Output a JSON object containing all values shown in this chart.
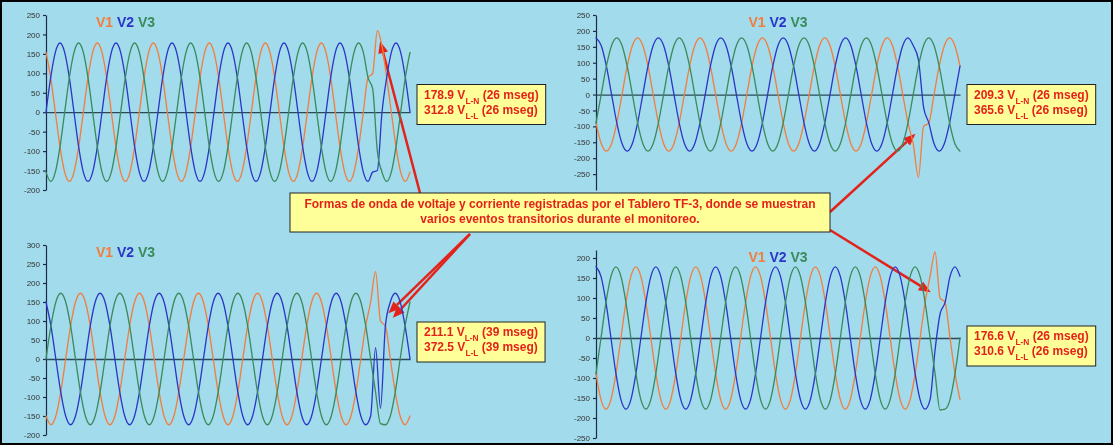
{
  "chart_data": [
    {
      "type": "line",
      "tick_labels": "y",
      "legend": "top left",
      "categories": [
        null,
        null,
        null,
        null,
        null,
        null,
        null,
        null,
        null,
        null,
        null,
        null,
        null,
        null,
        null,
        null,
        null,
        null,
        null,
        null,
        null,
        null,
        null,
        null,
        null,
        null,
        null,
        null,
        null,
        null,
        null,
        null,
        null,
        null,
        null,
        null,
        null,
        null,
        null,
        null,
        null,
        null,
        null,
        null,
        null,
        null,
        null,
        null,
        null,
        null,
        null,
        null,
        null,
        null,
        null,
        null,
        null,
        null,
        null,
        null,
        null,
        null,
        null,
        null,
        null,
        null,
        null,
        null,
        null,
        null,
        null,
        null,
        null,
        null,
        null,
        null,
        null,
        null,
        null
      ],
      "ylim": [
        -200,
        250
      ],
      "yticks": [
        -200,
        -150,
        -100,
        -50,
        0,
        50,
        100,
        150,
        200,
        250
      ],
      "series": [
        {
          "name": "V1",
          "color": "#f47c3c",
          "values": [
            154,
            89,
            0,
            -89,
            -154,
            -178,
            -154,
            -89,
            0,
            89,
            154,
            178,
            154,
            89,
            0,
            -89,
            -154,
            -178,
            -154,
            -89,
            0,
            89,
            154,
            178,
            154,
            89,
            0,
            -89,
            -154,
            -178,
            -154,
            -89,
            0,
            89,
            154,
            178,
            154,
            89,
            0,
            -89,
            -154,
            -178,
            -154,
            -89,
            0,
            89,
            154,
            178,
            154,
            89,
            0,
            -89,
            -154,
            -178,
            -154,
            -89,
            0,
            89,
            154,
            178,
            154,
            89,
            0,
            -89,
            -154,
            -178,
            -154,
            -89,
            0,
            89,
            100,
            210,
            170,
            89,
            0,
            -89,
            -154,
            -178,
            -154
          ]
        },
        {
          "name": "V2",
          "color": "#2b35c8",
          "values": [
            0,
            89,
            154,
            178,
            154,
            89,
            0,
            -89,
            -154,
            -178,
            -154,
            -89,
            0,
            89,
            154,
            178,
            154,
            89,
            0,
            -89,
            -154,
            -178,
            -154,
            -89,
            0,
            89,
            154,
            178,
            154,
            89,
            0,
            -89,
            -154,
            -178,
            -154,
            -89,
            0,
            89,
            154,
            178,
            154,
            89,
            0,
            -89,
            -154,
            -178,
            -154,
            -89,
            0,
            89,
            154,
            178,
            154,
            89,
            0,
            -89,
            -154,
            -178,
            -154,
            -89,
            0,
            89,
            154,
            178,
            154,
            89,
            0,
            -89,
            -154,
            -178,
            -154,
            -150,
            0,
            89,
            154,
            178,
            154,
            89,
            0
          ]
        },
        {
          "name": "V3",
          "color": "#3a8a5c",
          "values": [
            -154,
            -178,
            -154,
            -89,
            0,
            89,
            154,
            178,
            154,
            89,
            0,
            -89,
            -154,
            -178,
            -154,
            -89,
            0,
            89,
            154,
            178,
            154,
            89,
            0,
            -89,
            -154,
            -178,
            -154,
            -89,
            0,
            89,
            154,
            178,
            154,
            89,
            0,
            -89,
            -154,
            -178,
            -154,
            -89,
            0,
            89,
            154,
            178,
            154,
            89,
            0,
            -89,
            -154,
            -178,
            -154,
            -89,
            0,
            89,
            154,
            178,
            154,
            89,
            0,
            -89,
            -154,
            -178,
            -154,
            -89,
            0,
            89,
            154,
            178,
            154,
            89,
            60,
            -100,
            -154,
            -178,
            -154,
            -89,
            0,
            89,
            154
          ]
        }
      ],
      "annotations": [
        "178.9 V$_{L-N}$ (26 mseg)",
        "312.8 V$_{L-L}$ (26 mseg)",
        "Formas de onda de voltaje y corriente registradas por el Tablero TF-3, donde se muestran varios eventos transitorios durante el monitoreo."
      ]
    },
    {
      "type": "line",
      "tick_labels": "y",
      "legend": "top",
      "categories": [
        null,
        null,
        null,
        null,
        null,
        null,
        null,
        null,
        null,
        null,
        null,
        null,
        null,
        null,
        null,
        null,
        null,
        null,
        null,
        null,
        null,
        null,
        null,
        null,
        null,
        null,
        null,
        null,
        null,
        null,
        null,
        null,
        null,
        null,
        null,
        null,
        null,
        null,
        null,
        null,
        null,
        null,
        null,
        null,
        null,
        null,
        null,
        null,
        null,
        null,
        null,
        null,
        null,
        null,
        null,
        null,
        null,
        null,
        null,
        null,
        null,
        null,
        null,
        null,
        null,
        null,
        null,
        null,
        null,
        null,
        null
      ],
      "ylim": [
        -300,
        250
      ],
      "yticks": [
        -250,
        -200,
        -150,
        -100,
        -50,
        0,
        50,
        100,
        150,
        200,
        250
      ],
      "series": [
        {
          "name": "V1",
          "color": "#f47c3c",
          "values": [
            -89,
            -154,
            -178,
            -154,
            -89,
            0,
            89,
            154,
            178,
            154,
            89,
            0,
            -89,
            -154,
            -178,
            -154,
            -89,
            0,
            89,
            154,
            178,
            154,
            89,
            0,
            -89,
            -154,
            -178,
            -154,
            -89,
            0,
            89,
            154,
            178,
            154,
            89,
            0,
            -89,
            -154,
            -178,
            -154,
            -89,
            0,
            89,
            154,
            178,
            154,
            89,
            0,
            -89,
            -154,
            -178,
            -154,
            -89,
            0,
            89,
            154,
            178,
            154,
            89,
            0,
            -89,
            -154,
            -260,
            -100,
            -89,
            0,
            89,
            154,
            178,
            154,
            89
          ]
        },
        {
          "name": "V2",
          "color": "#2b35c8",
          "values": [
            178,
            154,
            89,
            0,
            -89,
            -154,
            -178,
            -154,
            -89,
            0,
            89,
            154,
            178,
            154,
            89,
            0,
            -89,
            -154,
            -178,
            -154,
            -89,
            0,
            89,
            154,
            178,
            154,
            89,
            0,
            -89,
            -154,
            -178,
            -154,
            -89,
            0,
            89,
            154,
            178,
            154,
            89,
            0,
            -89,
            -154,
            -178,
            -154,
            -89,
            0,
            89,
            154,
            178,
            154,
            89,
            0,
            -89,
            -154,
            -178,
            -154,
            -89,
            0,
            89,
            154,
            178,
            154,
            110,
            -40,
            -89,
            -154,
            -178,
            -154,
            -89,
            0,
            89
          ]
        },
        {
          "name": "V3",
          "color": "#3a8a5c",
          "values": [
            -89,
            0,
            89,
            154,
            178,
            154,
            89,
            0,
            -89,
            -154,
            -178,
            -154,
            -89,
            0,
            89,
            154,
            178,
            154,
            89,
            0,
            -89,
            -154,
            -178,
            -154,
            -89,
            0,
            89,
            154,
            178,
            154,
            89,
            0,
            -89,
            -154,
            -178,
            -154,
            -89,
            0,
            89,
            154,
            178,
            154,
            89,
            0,
            -89,
            -154,
            -178,
            -154,
            -89,
            0,
            89,
            154,
            178,
            154,
            89,
            0,
            -89,
            -154,
            -178,
            -154,
            -89,
            0,
            89,
            154,
            178,
            154,
            89,
            0,
            -89,
            -154,
            -178
          ]
        }
      ],
      "annotations": [
        "209.3 V$_{L-N}$ (26 mseg)",
        "365.6 V$_{L-L}$ (26 mseg)"
      ]
    },
    {
      "type": "line",
      "tick_labels": "y",
      "legend": "top left",
      "categories": [
        null,
        null,
        null,
        null,
        null,
        null,
        null,
        null,
        null,
        null,
        null,
        null,
        null,
        null,
        null,
        null,
        null,
        null,
        null,
        null,
        null,
        null,
        null,
        null,
        null,
        null,
        null,
        null,
        null,
        null,
        null,
        null,
        null,
        null,
        null,
        null,
        null,
        null,
        null,
        null,
        null,
        null,
        null,
        null,
        null,
        null,
        null,
        null,
        null,
        null,
        null,
        null,
        null,
        null,
        null,
        null,
        null,
        null,
        null,
        null,
        null,
        null,
        null,
        null,
        null,
        null,
        null,
        null,
        null,
        null,
        null,
        null,
        null,
        null,
        null
      ],
      "ylim": [
        -200,
        300
      ],
      "yticks": [
        -200,
        -150,
        -100,
        -50,
        0,
        50,
        100,
        150,
        200,
        250,
        300
      ],
      "series": [
        {
          "name": "V1",
          "color": "#f47c3c",
          "values": [
            -150,
            -173,
            -150,
            -87,
            0,
            87,
            150,
            173,
            150,
            87,
            0,
            -87,
            -150,
            -173,
            -150,
            -87,
            0,
            87,
            150,
            173,
            150,
            87,
            0,
            -87,
            -150,
            -173,
            -150,
            -87,
            0,
            87,
            150,
            173,
            150,
            87,
            0,
            -87,
            -150,
            -173,
            -150,
            -87,
            0,
            87,
            150,
            173,
            150,
            87,
            0,
            -87,
            -150,
            -173,
            -150,
            -87,
            0,
            87,
            150,
            173,
            150,
            87,
            0,
            -87,
            -150,
            -173,
            -150,
            -87,
            0,
            87,
            150,
            230,
            100,
            87,
            0,
            -87,
            -150,
            -173,
            -150
          ]
        },
        {
          "name": "V2",
          "color": "#2b35c8",
          "values": [
            150,
            87,
            0,
            -87,
            -150,
            -173,
            -150,
            -87,
            0,
            87,
            150,
            173,
            150,
            87,
            0,
            -87,
            -150,
            -173,
            -150,
            -87,
            0,
            87,
            150,
            173,
            150,
            87,
            0,
            -87,
            -150,
            -173,
            -150,
            -87,
            0,
            87,
            150,
            173,
            150,
            87,
            0,
            -87,
            -150,
            -173,
            -150,
            -87,
            0,
            87,
            150,
            173,
            150,
            87,
            0,
            -87,
            -150,
            -173,
            -150,
            -87,
            0,
            87,
            150,
            173,
            150,
            87,
            0,
            -87,
            -150,
            -173,
            -150,
            30,
            -130,
            87,
            150,
            173,
            150,
            87,
            0
          ]
        },
        {
          "name": "V3",
          "color": "#3a8a5c",
          "values": [
            0,
            87,
            150,
            173,
            150,
            87,
            0,
            -87,
            -150,
            -173,
            -150,
            -87,
            0,
            87,
            150,
            173,
            150,
            87,
            0,
            -87,
            -150,
            -173,
            -150,
            -87,
            0,
            87,
            150,
            173,
            150,
            87,
            0,
            -87,
            -150,
            -173,
            -150,
            -87,
            0,
            87,
            150,
            173,
            150,
            87,
            0,
            -87,
            -150,
            -173,
            -150,
            -87,
            0,
            87,
            150,
            173,
            150,
            87,
            0,
            -87,
            -150,
            -173,
            -150,
            -87,
            0,
            87,
            150,
            173,
            150,
            87,
            0,
            -87,
            -170,
            -173,
            -150,
            -87,
            0,
            87,
            150
          ]
        }
      ],
      "annotations": [
        "211.1 V$_{L-N}$ (39 mseg)",
        "372.5 V$_{L-L}$ (39 mseg)"
      ]
    },
    {
      "type": "line",
      "tick_labels": "y",
      "legend": "top",
      "categories": [
        null,
        null,
        null,
        null,
        null,
        null,
        null,
        null,
        null,
        null,
        null,
        null,
        null,
        null,
        null,
        null,
        null,
        null,
        null,
        null,
        null,
        null,
        null,
        null,
        null,
        null,
        null,
        null,
        null,
        null,
        null,
        null,
        null,
        null,
        null,
        null,
        null,
        null,
        null,
        null,
        null,
        null,
        null,
        null,
        null,
        null,
        null,
        null,
        null,
        null,
        null,
        null,
        null,
        null,
        null,
        null,
        null,
        null,
        null,
        null,
        null,
        null,
        null,
        null,
        null,
        null,
        null,
        null,
        null,
        null,
        null,
        null,
        null,
        null
      ],
      "ylim": [
        -250,
        220
      ],
      "yticks": [
        -250,
        -200,
        -150,
        -100,
        -50,
        0,
        50,
        100,
        150,
        200
      ],
      "series": [
        {
          "name": "V1",
          "color": "#f47c3c",
          "values": [
            -89,
            -154,
            -178,
            -154,
            -89,
            0,
            89,
            154,
            178,
            154,
            89,
            0,
            -89,
            -154,
            -178,
            -154,
            -89,
            0,
            89,
            154,
            178,
            154,
            89,
            0,
            -89,
            -154,
            -178,
            -154,
            -89,
            0,
            89,
            154,
            178,
            154,
            89,
            0,
            -89,
            -154,
            -178,
            -154,
            -89,
            0,
            89,
            154,
            178,
            154,
            89,
            0,
            -89,
            -154,
            -178,
            -154,
            -89,
            0,
            89,
            154,
            178,
            154,
            89,
            0,
            -89,
            -154,
            -178,
            -154,
            -89,
            0,
            89,
            154,
            215,
            100,
            89,
            0,
            -89,
            -154
          ]
        },
        {
          "name": "V2",
          "color": "#2b35c8",
          "values": [
            178,
            154,
            89,
            0,
            -89,
            -154,
            -178,
            -154,
            -89,
            0,
            89,
            154,
            178,
            154,
            89,
            0,
            -89,
            -154,
            -178,
            -154,
            -89,
            0,
            89,
            154,
            178,
            154,
            89,
            0,
            -89,
            -154,
            -178,
            -154,
            -89,
            0,
            89,
            154,
            178,
            154,
            89,
            0,
            -89,
            -154,
            -178,
            -154,
            -89,
            0,
            89,
            154,
            178,
            154,
            89,
            0,
            -89,
            -154,
            -178,
            -154,
            -89,
            0,
            89,
            154,
            178,
            154,
            89,
            0,
            -89,
            -154,
            -178,
            -154,
            -30,
            60,
            89,
            154,
            178,
            154
          ]
        },
        {
          "name": "V3",
          "color": "#3a8a5c",
          "values": [
            -89,
            0,
            89,
            154,
            178,
            154,
            89,
            0,
            -89,
            -154,
            -178,
            -154,
            -89,
            0,
            89,
            154,
            178,
            154,
            89,
            0,
            -89,
            -154,
            -178,
            -154,
            -89,
            0,
            89,
            154,
            178,
            154,
            89,
            0,
            -89,
            -154,
            -178,
            -154,
            -89,
            0,
            89,
            154,
            178,
            154,
            89,
            0,
            -89,
            -154,
            -178,
            -154,
            -89,
            0,
            89,
            154,
            178,
            154,
            89,
            0,
            -89,
            -154,
            -178,
            -154,
            -89,
            0,
            89,
            154,
            178,
            154,
            89,
            0,
            -89,
            -180,
            -178,
            -154,
            -89,
            0
          ]
        }
      ],
      "annotations": [
        "176.6 V$_{L-N}$ (26 mseg)",
        "310.6 V$_{L-L}$ (26 mseg)"
      ]
    }
  ]
}
